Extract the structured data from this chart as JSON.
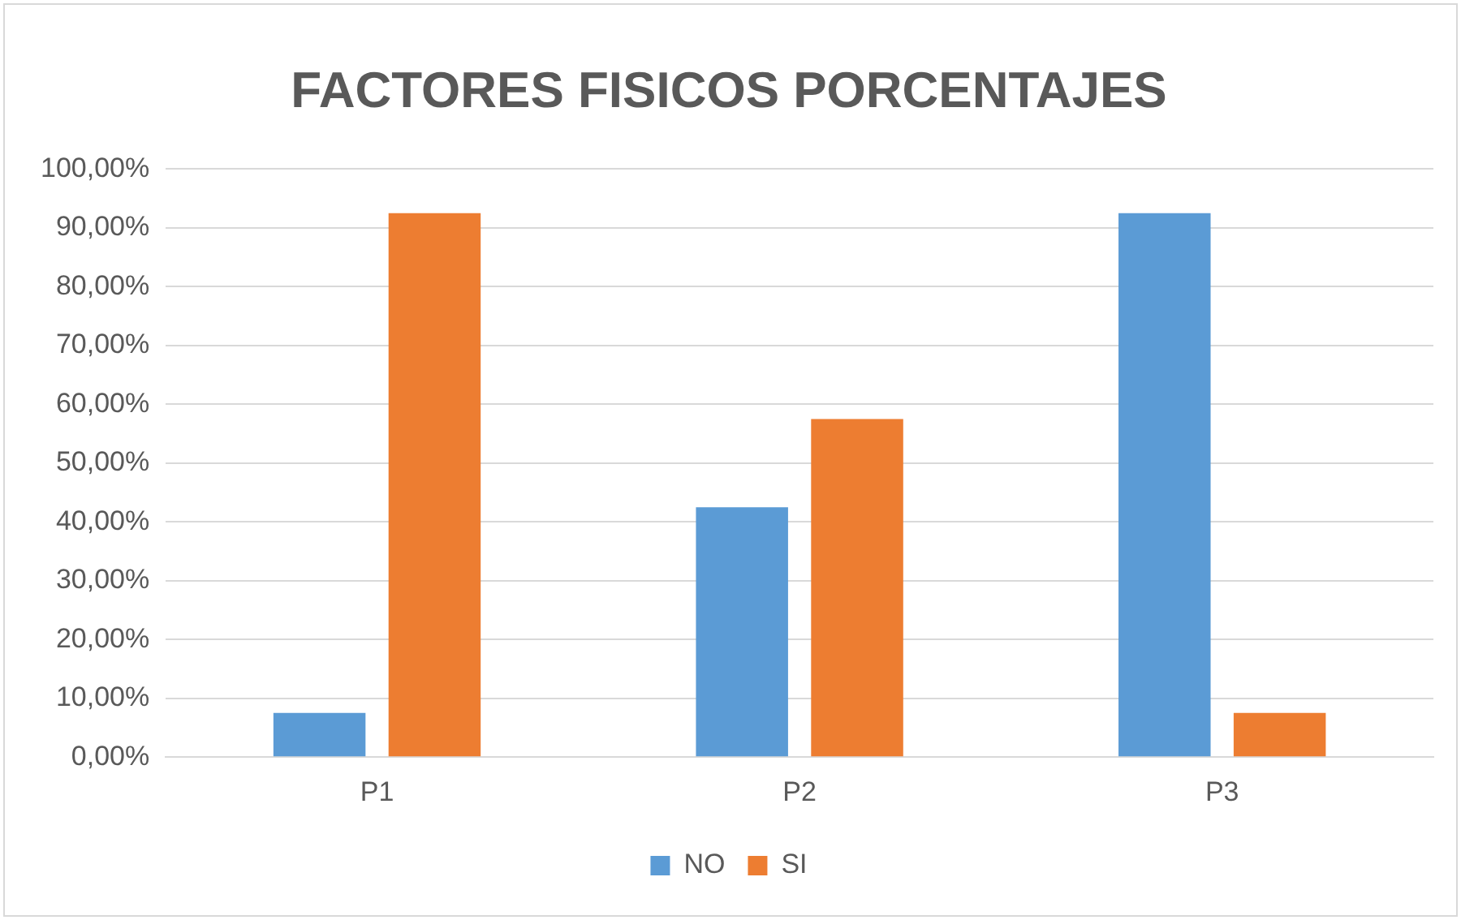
{
  "chart_data": {
    "type": "bar",
    "title": "FACTORES FISICOS PORCENTAJES",
    "categories": [
      "P1",
      "P2",
      "P3"
    ],
    "series": [
      {
        "name": "NO",
        "color": "#5b9bd5",
        "values": [
          7.5,
          42.5,
          92.5
        ]
      },
      {
        "name": "SI",
        "color": "#ed7d31",
        "values": [
          92.5,
          57.5,
          7.5
        ]
      }
    ],
    "ylim": [
      0,
      100
    ],
    "yticks": [
      {
        "value": 0,
        "label": "0,00%"
      },
      {
        "value": 10,
        "label": "10,00%"
      },
      {
        "value": 20,
        "label": "20,00%"
      },
      {
        "value": 30,
        "label": "30,00%"
      },
      {
        "value": 40,
        "label": "40,00%"
      },
      {
        "value": 50,
        "label": "50,00%"
      },
      {
        "value": 60,
        "label": "60,00%"
      },
      {
        "value": 70,
        "label": "70,00%"
      },
      {
        "value": 80,
        "label": "80,00%"
      },
      {
        "value": 90,
        "label": "90,00%"
      },
      {
        "value": 100,
        "label": "100,00%"
      }
    ],
    "grid": "y",
    "legend": "bottom"
  }
}
